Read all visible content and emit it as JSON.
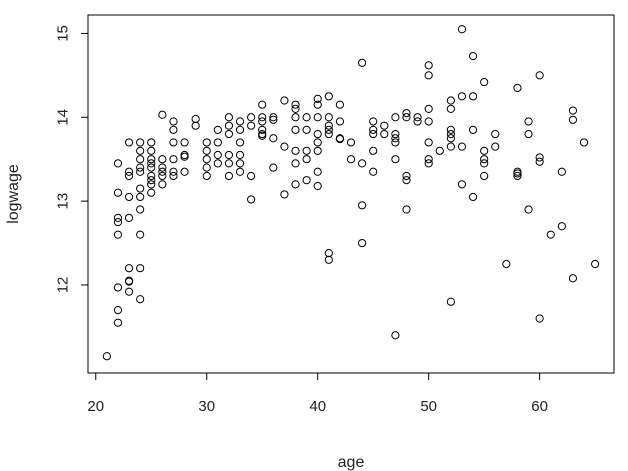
{
  "chart_data": {
    "type": "scatter",
    "title": "",
    "xlabel": "age",
    "ylabel": "logwage",
    "xlim": [
      19.3,
      66.7
    ],
    "ylim": [
      10.95,
      15.22
    ],
    "xticks": [
      20,
      30,
      40,
      50,
      60
    ],
    "yticks": [
      12,
      13,
      14,
      15
    ],
    "grid": false,
    "marker": "open-circle",
    "point_color": "#000000",
    "points": [
      [
        21,
        11.15
      ],
      [
        22,
        13.45
      ],
      [
        22,
        13.1
      ],
      [
        22,
        12.8
      ],
      [
        22,
        12.75
      ],
      [
        22,
        12.6
      ],
      [
        22,
        11.97
      ],
      [
        22,
        11.7
      ],
      [
        22,
        11.55
      ],
      [
        23,
        13.7
      ],
      [
        23,
        13.35
      ],
      [
        23,
        13.3
      ],
      [
        23,
        13.05
      ],
      [
        23,
        12.8
      ],
      [
        23,
        12.2
      ],
      [
        23,
        12.05
      ],
      [
        23,
        12.04
      ],
      [
        23,
        11.92
      ],
      [
        24,
        13.7
      ],
      [
        24,
        13.6
      ],
      [
        24,
        13.5
      ],
      [
        24,
        13.4
      ],
      [
        24,
        13.35
      ],
      [
        24,
        13.15
      ],
      [
        24,
        13.05
      ],
      [
        24,
        12.9
      ],
      [
        24,
        12.6
      ],
      [
        24,
        12.2
      ],
      [
        24,
        11.83
      ],
      [
        25,
        13.7
      ],
      [
        25,
        13.6
      ],
      [
        25,
        13.5
      ],
      [
        25,
        13.45
      ],
      [
        25,
        13.4
      ],
      [
        25,
        13.3
      ],
      [
        25,
        13.25
      ],
      [
        25,
        13.2
      ],
      [
        25,
        13.1
      ],
      [
        26,
        14.03
      ],
      [
        26,
        13.5
      ],
      [
        26,
        13.4
      ],
      [
        26,
        13.35
      ],
      [
        26,
        13.3
      ],
      [
        26,
        13.2
      ],
      [
        27,
        13.95
      ],
      [
        27,
        13.85
      ],
      [
        27,
        13.7
      ],
      [
        27,
        13.5
      ],
      [
        27,
        13.35
      ],
      [
        27,
        13.3
      ],
      [
        28,
        13.7
      ],
      [
        28,
        13.55
      ],
      [
        28,
        13.53
      ],
      [
        28,
        13.35
      ],
      [
        29,
        13.98
      ],
      [
        29,
        13.9
      ],
      [
        30,
        13.7
      ],
      [
        30,
        13.6
      ],
      [
        30,
        13.5
      ],
      [
        30,
        13.4
      ],
      [
        30,
        13.3
      ],
      [
        31,
        13.85
      ],
      [
        31,
        13.7
      ],
      [
        31,
        13.55
      ],
      [
        31,
        13.45
      ],
      [
        32,
        14.0
      ],
      [
        32,
        13.9
      ],
      [
        32,
        13.8
      ],
      [
        32,
        13.55
      ],
      [
        32,
        13.45
      ],
      [
        32,
        13.3
      ],
      [
        33,
        13.95
      ],
      [
        33,
        13.85
      ],
      [
        33,
        13.7
      ],
      [
        33,
        13.55
      ],
      [
        33,
        13.45
      ],
      [
        33,
        13.35
      ],
      [
        34,
        14.0
      ],
      [
        34,
        13.9
      ],
      [
        34,
        13.3
      ],
      [
        34,
        13.02
      ],
      [
        35,
        14.15
      ],
      [
        35,
        14.0
      ],
      [
        35,
        13.95
      ],
      [
        35,
        13.85
      ],
      [
        35,
        13.8
      ],
      [
        35,
        13.78
      ],
      [
        36,
        14.0
      ],
      [
        36,
        13.97
      ],
      [
        36,
        13.75
      ],
      [
        36,
        13.4
      ],
      [
        37,
        14.2
      ],
      [
        37,
        13.65
      ],
      [
        37,
        13.08
      ],
      [
        38,
        14.15
      ],
      [
        38,
        14.1
      ],
      [
        38,
        14.0
      ],
      [
        38,
        13.85
      ],
      [
        38,
        13.6
      ],
      [
        38,
        13.45
      ],
      [
        38,
        13.2
      ],
      [
        39,
        14.0
      ],
      [
        39,
        13.85
      ],
      [
        39,
        13.6
      ],
      [
        39,
        13.5
      ],
      [
        39,
        13.25
      ],
      [
        40,
        14.22
      ],
      [
        40,
        14.15
      ],
      [
        40,
        14.0
      ],
      [
        40,
        13.8
      ],
      [
        40,
        13.7
      ],
      [
        40,
        13.6
      ],
      [
        40,
        13.35
      ],
      [
        40,
        13.18
      ],
      [
        41,
        14.25
      ],
      [
        41,
        14.0
      ],
      [
        41,
        13.9
      ],
      [
        41,
        13.85
      ],
      [
        41,
        13.8
      ],
      [
        41,
        12.38
      ],
      [
        41,
        12.3
      ],
      [
        42,
        14.15
      ],
      [
        42,
        13.95
      ],
      [
        42,
        13.75
      ],
      [
        42,
        13.74
      ],
      [
        43,
        13.7
      ],
      [
        43,
        13.5
      ],
      [
        44,
        14.65
      ],
      [
        44,
        13.45
      ],
      [
        44,
        12.95
      ],
      [
        44,
        12.5
      ],
      [
        45,
        13.95
      ],
      [
        45,
        13.85
      ],
      [
        45,
        13.8
      ],
      [
        45,
        13.6
      ],
      [
        45,
        13.35
      ],
      [
        46,
        13.9
      ],
      [
        46,
        13.8
      ],
      [
        47,
        14.0
      ],
      [
        47,
        13.8
      ],
      [
        47,
        13.75
      ],
      [
        47,
        13.7
      ],
      [
        47,
        13.5
      ],
      [
        47,
        11.4
      ],
      [
        48,
        14.05
      ],
      [
        48,
        14.0
      ],
      [
        48,
        13.3
      ],
      [
        48,
        13.25
      ],
      [
        48,
        12.9
      ],
      [
        49,
        14.0
      ],
      [
        49,
        13.95
      ],
      [
        50,
        14.62
      ],
      [
        50,
        14.5
      ],
      [
        50,
        14.1
      ],
      [
        50,
        13.95
      ],
      [
        50,
        13.7
      ],
      [
        50,
        13.5
      ],
      [
        50,
        13.45
      ],
      [
        51,
        13.6
      ],
      [
        52,
        14.2
      ],
      [
        52,
        14.1
      ],
      [
        52,
        13.85
      ],
      [
        52,
        13.8
      ],
      [
        52,
        13.75
      ],
      [
        52,
        13.65
      ],
      [
        52,
        11.8
      ],
      [
        53,
        15.05
      ],
      [
        53,
        14.25
      ],
      [
        53,
        13.65
      ],
      [
        53,
        13.2
      ],
      [
        54,
        14.73
      ],
      [
        54,
        14.25
      ],
      [
        54,
        13.85
      ],
      [
        54,
        13.05
      ],
      [
        55,
        14.42
      ],
      [
        55,
        13.6
      ],
      [
        55,
        13.5
      ],
      [
        55,
        13.45
      ],
      [
        55,
        13.3
      ],
      [
        56,
        13.8
      ],
      [
        56,
        13.65
      ],
      [
        57,
        12.25
      ],
      [
        58,
        14.35
      ],
      [
        58,
        13.35
      ],
      [
        58,
        13.33
      ],
      [
        58,
        13.3
      ],
      [
        59,
        13.95
      ],
      [
        59,
        13.8
      ],
      [
        59,
        12.9
      ],
      [
        60,
        14.5
      ],
      [
        60,
        13.52
      ],
      [
        60,
        13.47
      ],
      [
        60,
        11.6
      ],
      [
        61,
        12.6
      ],
      [
        62,
        13.35
      ],
      [
        62,
        12.7
      ],
      [
        63,
        14.08
      ],
      [
        63,
        13.97
      ],
      [
        63,
        12.08
      ],
      [
        64,
        13.7
      ],
      [
        65,
        12.25
      ]
    ]
  }
}
